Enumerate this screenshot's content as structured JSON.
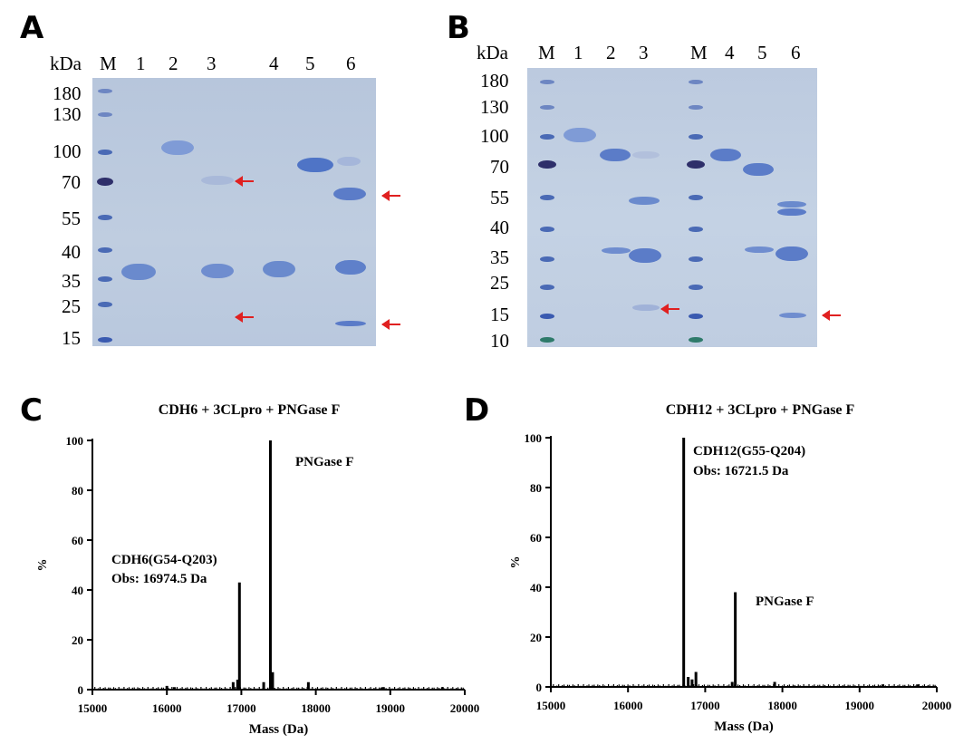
{
  "panel_A": {
    "letter": "A",
    "unit_label": "kDa",
    "lane_labels": [
      "M",
      "1",
      "2",
      "3",
      "4",
      "5",
      "6"
    ],
    "ladder": [
      "180",
      "130",
      "100",
      "70",
      "55",
      "40",
      "35",
      "25",
      "15"
    ]
  },
  "panel_B": {
    "letter": "B",
    "unit_label": "kDa",
    "lane_labels": [
      "M",
      "1",
      "2",
      "3",
      "M",
      "4",
      "5",
      "6"
    ],
    "ladder": [
      "180",
      "130",
      "100",
      "70",
      "55",
      "40",
      "35",
      "25",
      "15",
      "10"
    ]
  },
  "chart_data": [
    {
      "panel": "C",
      "type": "bar",
      "title": "CDH6 + 3CLpro + PNGase F",
      "xlabel": "Mass (Da)",
      "ylabel": "%",
      "xlim": [
        15000,
        20000
      ],
      "ylim": [
        0,
        100
      ],
      "xticks": [
        "15000",
        "16000",
        "17000",
        "18000",
        "19000",
        "20000"
      ],
      "yticks": [
        "0",
        "20",
        "40",
        "60",
        "80",
        "100"
      ],
      "peaks": [
        {
          "x": 16974.5,
          "y": 43
        },
        {
          "x": 17390,
          "y": 100
        },
        {
          "x": 17420,
          "y": 7
        },
        {
          "x": 16950,
          "y": 4
        },
        {
          "x": 16890,
          "y": 3
        },
        {
          "x": 17300,
          "y": 3
        },
        {
          "x": 17900,
          "y": 3
        },
        {
          "x": 16000,
          "y": 1.5
        },
        {
          "x": 16100,
          "y": 1
        },
        {
          "x": 18900,
          "y": 1
        },
        {
          "x": 19700,
          "y": 1
        }
      ],
      "annotations": [
        {
          "text": "PNGase F"
        },
        {
          "text": "CDH6(G54-Q203)"
        },
        {
          "text": "Obs: 16974.5 Da"
        }
      ]
    },
    {
      "panel": "D",
      "type": "bar",
      "title": "CDH12 + 3CLpro + PNGase F",
      "xlabel": "Mass (Da)",
      "ylabel": "%",
      "xlim": [
        15000,
        20000
      ],
      "ylim": [
        0,
        100
      ],
      "xticks": [
        "15000",
        "16000",
        "17000",
        "18000",
        "19000",
        "20000"
      ],
      "yticks": [
        "0",
        "20",
        "40",
        "60",
        "80",
        "100"
      ],
      "peaks": [
        {
          "x": 16721.5,
          "y": 100
        },
        {
          "x": 17390,
          "y": 38
        },
        {
          "x": 16880,
          "y": 6
        },
        {
          "x": 16780,
          "y": 4
        },
        {
          "x": 16830,
          "y": 3
        },
        {
          "x": 17350,
          "y": 2
        },
        {
          "x": 17900,
          "y": 2
        },
        {
          "x": 19300,
          "y": 1
        },
        {
          "x": 19750,
          "y": 1
        }
      ],
      "annotations": [
        {
          "text": "CDH12(G55-Q204)"
        },
        {
          "text": "Obs: 16721.5 Da"
        },
        {
          "text": "PNGase F"
        }
      ]
    }
  ]
}
